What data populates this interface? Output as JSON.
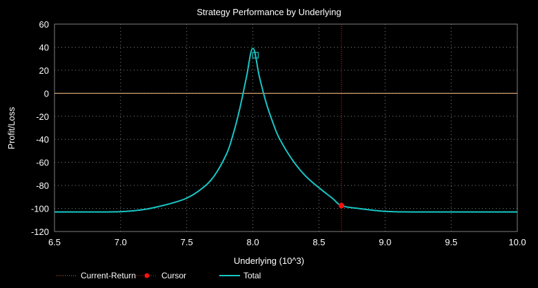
{
  "chart_data": {
    "type": "line",
    "title": "Strategy Performance by Underlying",
    "xlabel": "Underlying (10^3)",
    "ylabel": "Profit/Loss",
    "xlim": [
      6.5,
      10.0
    ],
    "ylim": [
      -120,
      60
    ],
    "x_ticks": [
      "6.5",
      "7.0",
      "7.5",
      "8.0",
      "8.5",
      "9.0",
      "9.5",
      "10.0"
    ],
    "y_ticks": [
      "60",
      "40",
      "20",
      "0",
      "-20",
      "-40",
      "-60",
      "-80",
      "-100",
      "-120"
    ],
    "grid": true,
    "legend_position": "bottom",
    "current_return": 0,
    "cursor": {
      "x": 8.67,
      "y": -97.5
    },
    "current_marker": {
      "x": 8.02,
      "y": 33
    },
    "series": [
      {
        "name": "Total",
        "color": "#19c6c6",
        "x": [
          6.5,
          6.7,
          6.9,
          7.0,
          7.1,
          7.2,
          7.3,
          7.4,
          7.5,
          7.6,
          7.7,
          7.8,
          7.85,
          7.9,
          7.95,
          8.0,
          8.05,
          8.1,
          8.15,
          8.2,
          8.3,
          8.4,
          8.5,
          8.6,
          8.67,
          8.8,
          9.0,
          9.2,
          9.5,
          10.0
        ],
        "y": [
          -103,
          -103,
          -103,
          -102.8,
          -102,
          -100.5,
          -98,
          -95,
          -91,
          -84,
          -73,
          -53,
          -36,
          -14,
          13,
          39,
          14,
          -8,
          -25,
          -39,
          -58,
          -72,
          -82,
          -91,
          -97.5,
          -100,
          -102.5,
          -103,
          -103,
          -103
        ]
      }
    ],
    "legend": [
      {
        "name": "Current-Return",
        "color": "#ff6a3a"
      },
      {
        "name": "Cursor",
        "color": "#ff1010"
      },
      {
        "name": "Total",
        "color": "#19c6c6"
      }
    ]
  }
}
